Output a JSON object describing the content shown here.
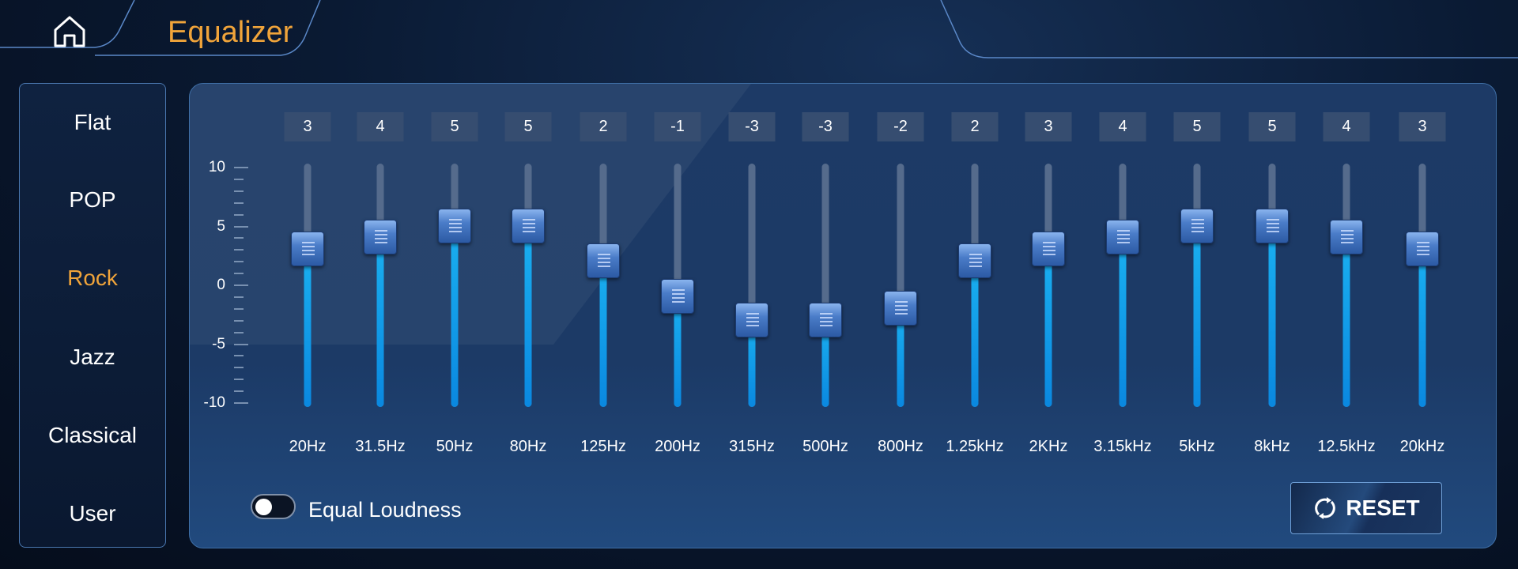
{
  "header": {
    "title": "Equalizer",
    "home_icon": "home-icon"
  },
  "presets": [
    {
      "label": "Flat"
    },
    {
      "label": "POP"
    },
    {
      "label": "Rock",
      "active": true
    },
    {
      "label": "Jazz"
    },
    {
      "label": "Classical"
    },
    {
      "label": "User"
    }
  ],
  "scale": {
    "labels": [
      "10",
      "5",
      "0",
      "-5",
      "-10"
    ],
    "min": -10,
    "max": 10
  },
  "bands": [
    {
      "freq": "20Hz",
      "value": 3
    },
    {
      "freq": "31.5Hz",
      "value": 4
    },
    {
      "freq": "50Hz",
      "value": 5
    },
    {
      "freq": "80Hz",
      "value": 5
    },
    {
      "freq": "125Hz",
      "value": 2
    },
    {
      "freq": "200Hz",
      "value": -1
    },
    {
      "freq": "315Hz",
      "value": -3
    },
    {
      "freq": "500Hz",
      "value": -3
    },
    {
      "freq": "800Hz",
      "value": -2
    },
    {
      "freq": "1.25kHz",
      "value": 2
    },
    {
      "freq": "2KHz",
      "value": 3
    },
    {
      "freq": "3.15kHz",
      "value": 4
    },
    {
      "freq": "5kHz",
      "value": 5
    },
    {
      "freq": "8kHz",
      "value": 5
    },
    {
      "freq": "12.5kHz",
      "value": 4
    },
    {
      "freq": "20kHz",
      "value": 3
    }
  ],
  "loudness": {
    "label": "Equal Loudness",
    "enabled": false
  },
  "reset": {
    "label": "RESET",
    "icon": "refresh-icon"
  },
  "colors": {
    "accent": "#f0a43a",
    "fill": "#1ab0f0"
  }
}
